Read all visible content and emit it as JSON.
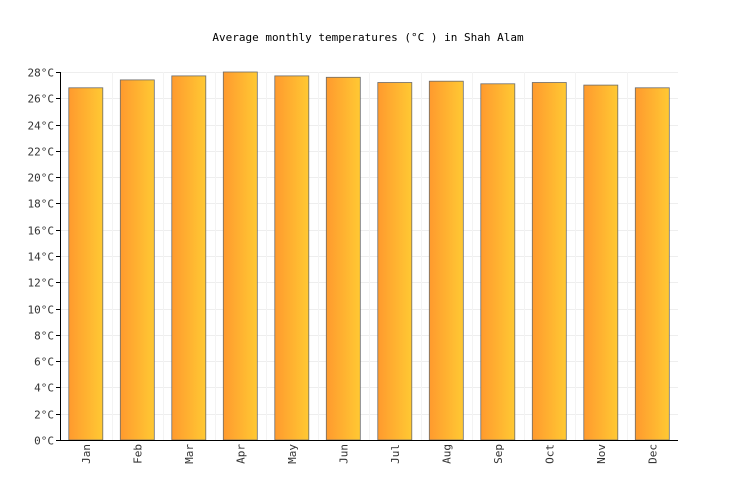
{
  "chart_data": {
    "type": "bar",
    "title": "Average monthly temperatures (°C ) in Shah Alam",
    "categories": [
      "Jan",
      "Feb",
      "Mar",
      "Apr",
      "May",
      "Jun",
      "Jul",
      "Aug",
      "Sep",
      "Oct",
      "Nov",
      "Dec"
    ],
    "values": [
      26.8,
      27.4,
      27.7,
      28.0,
      27.7,
      27.6,
      27.2,
      27.3,
      27.1,
      27.2,
      27.0,
      26.8
    ],
    "ylim": [
      0,
      28
    ],
    "yticks": [
      "0°C",
      "2°C",
      "4°C",
      "6°C",
      "8°C",
      "10°C",
      "12°C",
      "14°C",
      "16°C",
      "18°C",
      "20°C",
      "22°C",
      "24°C",
      "26°C",
      "28°C"
    ],
    "grid": true,
    "legend": "none",
    "colors": {
      "bar_left": "#ff9a2e",
      "bar_right": "#ffc933",
      "bar_stroke": "#6b6b6b"
    }
  }
}
